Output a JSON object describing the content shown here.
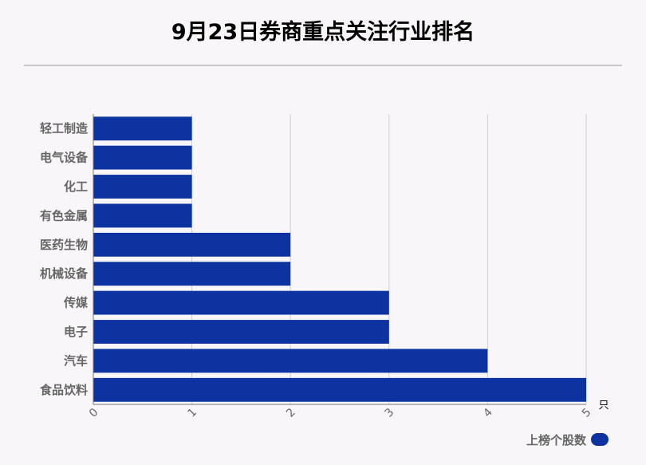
{
  "title": "9月23日券商重点关注行业排名",
  "chart_data": {
    "type": "bar",
    "orientation": "horizontal",
    "title": "9月23日券商重点关注行业排名",
    "categories": [
      "轻工制造",
      "电气设备",
      "化工",
      "有色金属",
      "医药生物",
      "机械设备",
      "传媒",
      "电子",
      "汽车",
      "食品饮料"
    ],
    "series": [
      {
        "name": "上榜个股数",
        "values": [
          1,
          1,
          1,
          1,
          2,
          2,
          3,
          3,
          4,
          5
        ]
      }
    ],
    "xlim": [
      0,
      5
    ],
    "xticks": [
      "0",
      "1",
      "2",
      "3",
      "4",
      "5"
    ],
    "xunit": "只",
    "grid": true,
    "legend_position": "bottom-right",
    "bar_color": "#0d33a0"
  }
}
